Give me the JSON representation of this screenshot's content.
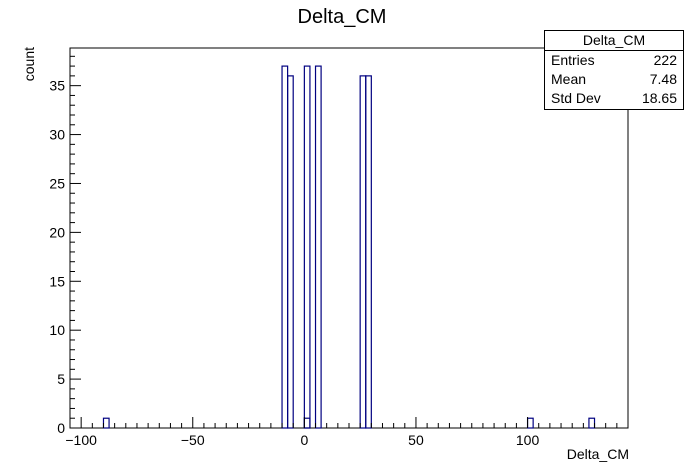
{
  "chart_data": {
    "type": "bar",
    "title": "Delta_CM",
    "xlabel": "Delta_CM",
    "ylabel": "count",
    "xlim": [
      -105,
      145
    ],
    "ylim": [
      0,
      38.85
    ],
    "x_ticks": [
      -100,
      -50,
      0,
      50,
      100
    ],
    "x_tick_labels": [
      "−100",
      "−50",
      "0",
      "50",
      "100"
    ],
    "y_ticks": [
      0,
      5,
      10,
      15,
      20,
      25,
      30,
      35
    ],
    "y_tick_labels": [
      "0",
      "5",
      "10",
      "15",
      "20",
      "25",
      "30",
      "35"
    ],
    "bin_width": 2.5,
    "bins": [
      {
        "x_low": -90,
        "x_high": -87.5,
        "count": 1
      },
      {
        "x_low": -10,
        "x_high": -7.5,
        "count": 37
      },
      {
        "x_low": -7.5,
        "x_high": -5,
        "count": 36
      },
      {
        "x_low": 0,
        "x_high": 2.5,
        "count": 1
      },
      {
        "x_low": 0,
        "x_high": 2.5,
        "count": 37
      },
      {
        "x_low": 5,
        "x_high": 7.5,
        "count": 37
      },
      {
        "x_low": 25,
        "x_high": 27.5,
        "count": 36
      },
      {
        "x_low": 27.5,
        "x_high": 30,
        "count": 36
      },
      {
        "x_low": 100,
        "x_high": 102.5,
        "count": 1
      },
      {
        "x_low": 127.5,
        "x_high": 130,
        "count": 1
      }
    ],
    "line_color": "#000080",
    "grid": false,
    "legend": "top-right"
  },
  "stats": {
    "title": "Delta_CM",
    "rows": [
      {
        "label": "Entries",
        "value": "222"
      },
      {
        "label": "Mean",
        "value": "7.48"
      },
      {
        "label": "Std Dev",
        "value": "18.65"
      }
    ]
  }
}
